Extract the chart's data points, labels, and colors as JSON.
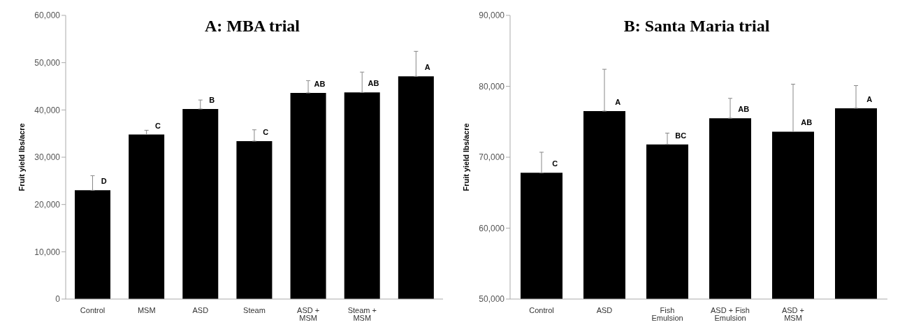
{
  "chart_data": [
    {
      "type": "bar",
      "title": "A: MBA trial",
      "ylabel": "Fruit yield lbs/acre",
      "categories": [
        "Control",
        "MSM",
        "ASD",
        "Steam",
        "ASD + MSM",
        "Steam + MSM",
        null
      ],
      "values": [
        23000,
        34800,
        40200,
        33400,
        43600,
        43700,
        47100
      ],
      "color": "#000000",
      "errors": [
        [
          23000,
          26100
        ],
        [
          34800,
          35700
        ],
        [
          40200,
          42100
        ],
        [
          33400,
          35800
        ],
        [
          43600,
          46200
        ],
        [
          43700,
          48000
        ],
        [
          47100,
          52400
        ]
      ],
      "value_labels": [
        "D",
        "C",
        "B",
        "C",
        "AB",
        "AB",
        "A"
      ],
      "ylim": [
        0,
        60000
      ],
      "yticks": [
        0,
        {
          "value": 10000,
          "label": "10,000"
        },
        {
          "value": 20000,
          "label": "20,000"
        },
        {
          "value": 30000,
          "label": "30,000"
        },
        {
          "value": 40000,
          "label": "40,000"
        },
        {
          "value": 50000,
          "label": "50,000"
        },
        {
          "value": 60000,
          "label": "60,000"
        }
      ],
      "grid": false,
      "legend": false
    },
    {
      "type": "bar",
      "title": "B: Santa Maria trial",
      "ylabel": "Fruit yield lbs/acre",
      "categories": [
        "Control",
        "ASD",
        "Fish Emulsion",
        "ASD + Fish Emulsion",
        "ASD + MSM",
        null
      ],
      "values": [
        67800,
        76500,
        71800,
        75500,
        73600,
        76900
      ],
      "color": "#000000",
      "errors": [
        [
          67800,
          70700
        ],
        [
          76500,
          82400
        ],
        [
          71800,
          73400
        ],
        [
          75500,
          78300
        ],
        [
          73600,
          80300
        ],
        [
          76900,
          80100
        ]
      ],
      "value_labels": [
        "C",
        "A",
        "BC",
        "AB",
        "AB",
        "A"
      ],
      "ylim": [
        50000,
        90000
      ],
      "yticks": [
        {
          "value": 50000,
          "label": "50,000"
        },
        {
          "value": 60000,
          "label": "60,000"
        },
        {
          "value": 70000,
          "label": "70,000"
        },
        {
          "value": 80000,
          "label": "80,000"
        },
        {
          "value": 90000,
          "label": "90,000"
        }
      ],
      "grid": false,
      "legend": false
    }
  ]
}
